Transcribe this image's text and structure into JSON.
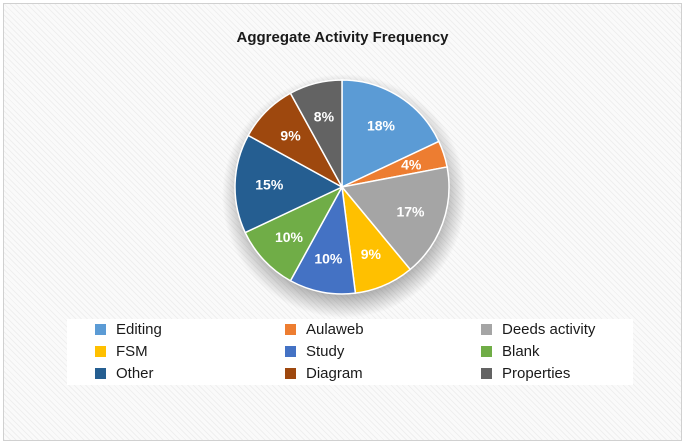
{
  "chart_data": {
    "type": "pie",
    "title": "Aggregate Activity Frequency",
    "categories": [
      "Editing",
      "Aulaweb",
      "Deeds activity",
      "FSM",
      "Study",
      "Blank",
      "Other",
      "Diagram",
      "Properties"
    ],
    "values": [
      18,
      4,
      17,
      9,
      10,
      10,
      15,
      9,
      8
    ],
    "labels": [
      "18%",
      "4%",
      "17%",
      "9%",
      "10%",
      "10%",
      "15%",
      "9%",
      "8%"
    ],
    "colors": [
      "#5B9BD5",
      "#ED7D31",
      "#A5A5A5",
      "#FFC000",
      "#4472C4",
      "#70AD47",
      "#255E91",
      "#9E480E",
      "#636363"
    ],
    "legend_position": "bottom"
  }
}
